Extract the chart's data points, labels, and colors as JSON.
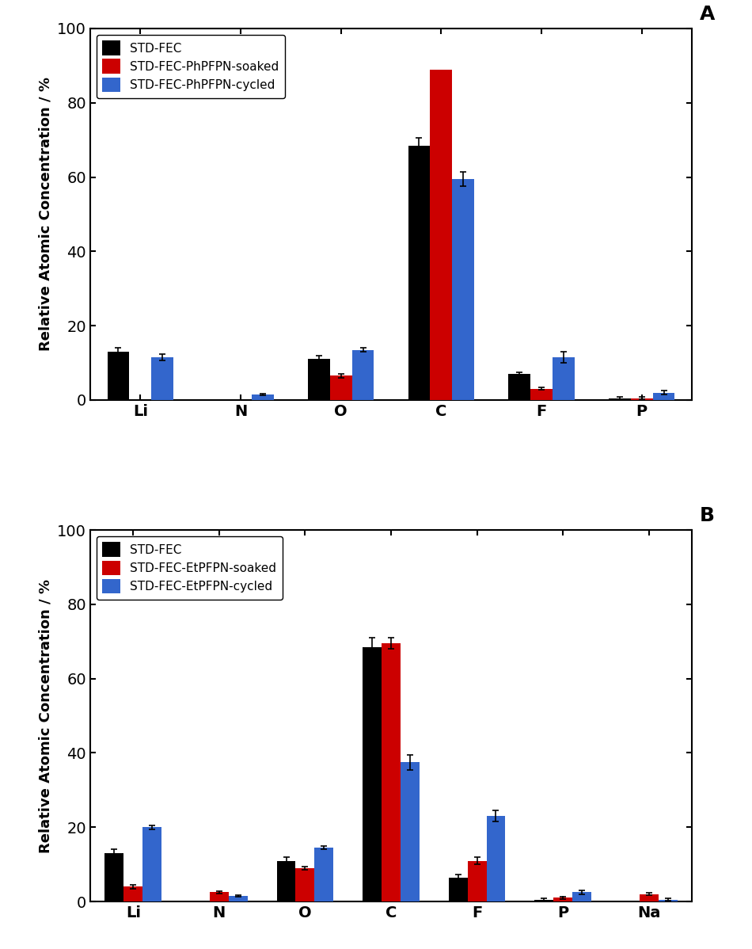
{
  "panel_A": {
    "title": "A",
    "categories": [
      "Li",
      "N",
      "O",
      "C",
      "F",
      "P"
    ],
    "legend_labels": [
      "STD-FEC",
      "STD-FEC-PhPFPN-soaked",
      "STD-FEC-PhPFPN-cycled"
    ],
    "colors": [
      "#000000",
      "#cc0000",
      "#3366cc"
    ],
    "values": {
      "black": [
        13.0,
        0.0,
        11.0,
        68.5,
        7.0,
        0.5
      ],
      "red": [
        0.0,
        0.0,
        6.5,
        89.0,
        3.0,
        0.5
      ],
      "blue": [
        11.5,
        1.5,
        13.5,
        59.5,
        11.5,
        2.0
      ]
    },
    "errors": {
      "black": [
        1.0,
        0.0,
        1.0,
        2.0,
        0.5,
        0.3
      ],
      "red": [
        0.0,
        0.0,
        0.5,
        0.0,
        0.3,
        0.3
      ],
      "blue": [
        0.8,
        0.3,
        0.5,
        2.0,
        1.5,
        0.5
      ]
    },
    "ylabel": "Relative Atomic Concentration / %",
    "ylim": [
      0,
      100
    ],
    "yticks": [
      0,
      20,
      40,
      60,
      80,
      100
    ]
  },
  "panel_B": {
    "title": "B",
    "categories": [
      "Li",
      "N",
      "O",
      "C",
      "F",
      "P",
      "Na"
    ],
    "legend_labels": [
      "STD-FEC",
      "STD-FEC-EtPFPN-soaked",
      "STD-FEC-EtPFPN-cycled"
    ],
    "colors": [
      "#000000",
      "#cc0000",
      "#3366cc"
    ],
    "values": {
      "black": [
        13.0,
        0.0,
        11.0,
        68.5,
        6.5,
        0.5,
        0.0
      ],
      "red": [
        4.0,
        2.5,
        9.0,
        69.5,
        11.0,
        1.0,
        2.0
      ],
      "blue": [
        20.0,
        1.5,
        14.5,
        37.5,
        23.0,
        2.5,
        0.5
      ]
    },
    "errors": {
      "black": [
        1.0,
        0.0,
        1.0,
        2.5,
        0.7,
        0.3,
        0.0
      ],
      "red": [
        0.5,
        0.3,
        0.5,
        1.5,
        1.0,
        0.3,
        0.3
      ],
      "blue": [
        0.5,
        0.3,
        0.5,
        2.0,
        1.5,
        0.5,
        0.3
      ]
    },
    "ylabel": "Relative Atomic Concentration / %",
    "ylim": [
      0,
      100
    ],
    "yticks": [
      0,
      20,
      40,
      60,
      80,
      100
    ]
  },
  "bar_width": 0.22,
  "background_color": "#ffffff",
  "tick_color": "#000000",
  "tick_label_fontsize": 14,
  "legend_fontsize": 11,
  "panel_label_fontsize": 18,
  "axis_label_fontsize": 13
}
